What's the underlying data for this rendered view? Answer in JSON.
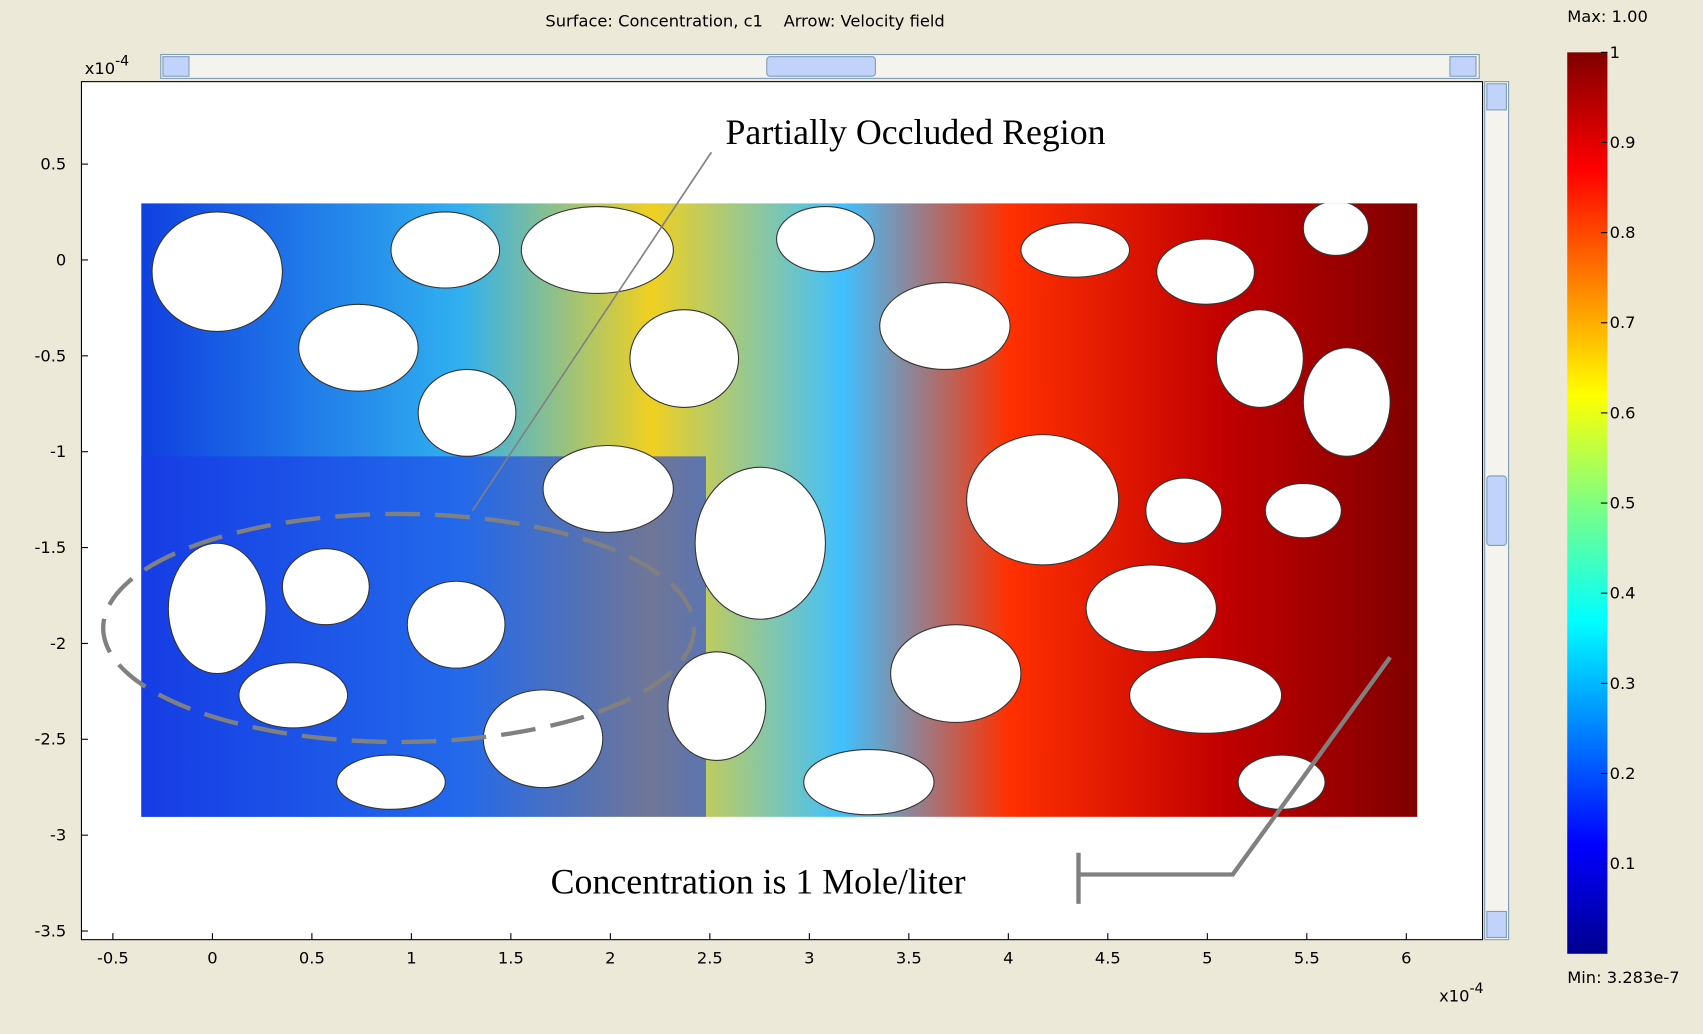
{
  "window": {
    "plot_title": "Surface: Concentration, c1    Arrow: Velocity field",
    "annotations": [
      "Partially Occluded Region",
      "Concentration is 1 Mole/liter"
    ]
  },
  "chart_data": {
    "type": "surface",
    "xlim": [
      -0.658,
      6.383
    ],
    "ylim": [
      -3.545,
      0.93
    ],
    "xticks": [
      -0.5,
      0,
      0.5,
      1,
      1.5,
      2,
      2.5,
      3,
      3.5,
      4,
      4.5,
      5,
      5.5,
      6
    ],
    "yticks": [
      0.5,
      0,
      -0.5,
      -1,
      -1.5,
      -2,
      -2.5,
      -3,
      -3.5
    ],
    "x_multiplier": {
      "base": "x10",
      "exponent": "-4"
    },
    "y_multiplier": {
      "base": "x10",
      "exponent": "-4"
    },
    "colorbar": {
      "lim": [
        0,
        1
      ],
      "ticks": [
        1,
        0.9,
        0.8,
        0.7,
        0.6,
        0.5,
        0.4,
        0.3,
        0.2,
        0.1
      ],
      "max_label": "Max: 1.00",
      "min_label": "Min: 3.283e-7"
    }
  }
}
